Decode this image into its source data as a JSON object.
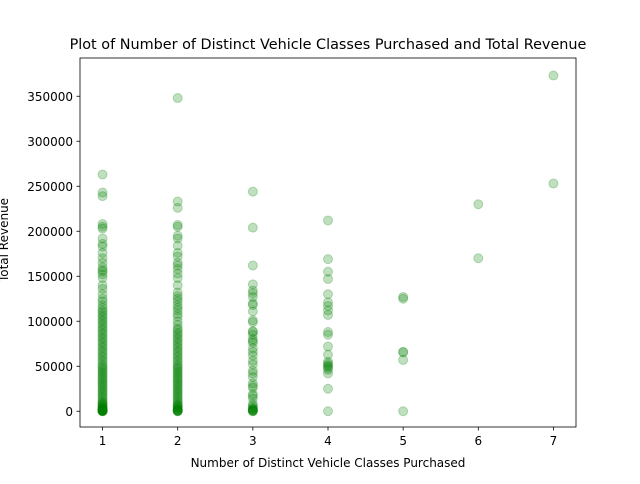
{
  "chart_data": {
    "type": "scatter",
    "title": "Plot of Number of Distinct Vehicle Classes Purchased and Total Revenue",
    "xlabel": "Number of Distinct Vehicle Classes Purchased",
    "ylabel": "Total Revenue",
    "xlim": [
      0.7,
      7.3
    ],
    "ylim": [
      -17500,
      392500
    ],
    "xticks": [
      1,
      2,
      3,
      4,
      5,
      6,
      7
    ],
    "yticks": [
      0,
      50000,
      100000,
      150000,
      200000,
      250000,
      300000,
      350000
    ],
    "ytick_labels": [
      "0",
      "50000",
      "100000",
      "150000",
      "200000",
      "250000",
      "300000",
      "350000"
    ],
    "grid": false,
    "marker_color": "#008000",
    "marker_opacity": 0.25,
    "x": [
      1,
      1,
      1,
      1,
      1,
      1,
      1,
      1,
      1,
      1,
      1,
      1,
      1,
      1,
      1,
      1,
      1,
      1,
      1,
      1,
      1,
      1,
      1,
      1,
      1,
      1,
      1,
      1,
      1,
      1,
      1,
      1,
      1,
      1,
      1,
      1,
      1,
      1,
      1,
      1,
      1,
      1,
      1,
      1,
      1,
      1,
      1,
      1,
      1,
      1,
      1,
      1,
      1,
      1,
      1,
      1,
      1,
      1,
      1,
      1,
      1,
      1,
      1,
      1,
      1,
      1,
      1,
      1,
      1,
      1,
      1,
      1,
      1,
      1,
      1,
      1,
      1,
      1,
      1,
      1,
      1,
      1,
      1,
      1,
      1,
      1,
      1,
      1,
      1,
      1,
      2,
      2,
      2,
      2,
      2,
      2,
      2,
      2,
      2,
      2,
      2,
      2,
      2,
      2,
      2,
      2,
      2,
      2,
      2,
      2,
      2,
      2,
      2,
      2,
      2,
      2,
      2,
      2,
      2,
      2,
      2,
      2,
      2,
      2,
      2,
      2,
      2,
      2,
      2,
      2,
      2,
      2,
      2,
      2,
      2,
      2,
      2,
      2,
      2,
      2,
      2,
      2,
      2,
      2,
      2,
      2,
      2,
      2,
      2,
      2,
      2,
      2,
      2,
      2,
      2,
      2,
      2,
      2,
      2,
      2,
      2,
      2,
      2,
      2,
      2,
      2,
      2,
      2,
      3,
      3,
      3,
      3,
      3,
      3,
      3,
      3,
      3,
      3,
      3,
      3,
      3,
      3,
      3,
      3,
      3,
      3,
      3,
      3,
      3,
      3,
      3,
      3,
      3,
      3,
      3,
      3,
      3,
      3,
      3,
      3,
      3,
      3,
      3,
      3,
      3,
      3,
      3,
      3,
      3,
      3,
      4,
      4,
      4,
      4,
      4,
      4,
      4,
      4,
      4,
      4,
      4,
      4,
      4,
      4,
      4,
      4,
      4,
      4,
      4,
      4,
      4,
      4,
      5,
      5,
      5,
      5,
      5,
      5,
      6,
      6,
      7,
      7
    ],
    "y": [
      263000,
      243000,
      239000,
      208000,
      205000,
      203000,
      192000,
      186000,
      183000,
      176000,
      170000,
      165000,
      160000,
      157000,
      155000,
      152000,
      148000,
      140000,
      136000,
      130000,
      125000,
      122000,
      118000,
      115000,
      112000,
      110000,
      107000,
      105000,
      102000,
      100000,
      97000,
      95000,
      92000,
      90000,
      87000,
      85000,
      82000,
      80000,
      77000,
      75000,
      72000,
      70000,
      67000,
      65000,
      62000,
      60000,
      57000,
      55000,
      52000,
      50000,
      48000,
      46000,
      44000,
      42000,
      40000,
      38000,
      36000,
      34000,
      32000,
      30000,
      28000,
      26000,
      24000,
      22000,
      20000,
      18000,
      16000,
      14000,
      12000,
      10000,
      9000,
      8000,
      7000,
      6000,
      5000,
      4000,
      3500,
      3000,
      2500,
      2000,
      1500,
      1200,
      1000,
      800,
      600,
      400,
      300,
      200,
      100,
      0,
      348000,
      233000,
      226000,
      207000,
      205000,
      195000,
      192000,
      184000,
      176000,
      172000,
      165000,
      162000,
      158000,
      153000,
      148000,
      140000,
      132000,
      128000,
      125000,
      122000,
      118000,
      115000,
      112000,
      108000,
      105000,
      100000,
      96000,
      92000,
      90000,
      87000,
      85000,
      82000,
      80000,
      77000,
      75000,
      72000,
      70000,
      67000,
      65000,
      62000,
      60000,
      57000,
      55000,
      52000,
      50000,
      48000,
      46000,
      44000,
      42000,
      40000,
      38000,
      36000,
      34000,
      32000,
      30000,
      28000,
      26000,
      24000,
      22000,
      20000,
      18000,
      16000,
      14000,
      12000,
      10000,
      8000,
      7000,
      6000,
      5000,
      4000,
      3000,
      2000,
      1500,
      1000,
      600,
      300,
      100,
      0,
      244000,
      204000,
      162000,
      141000,
      134000,
      131000,
      127000,
      120000,
      118000,
      111000,
      101000,
      99000,
      89000,
      88000,
      85000,
      80000,
      78000,
      76000,
      70000,
      66000,
      62000,
      56000,
      52000,
      45000,
      42000,
      38000,
      31000,
      28000,
      26000,
      19000,
      17000,
      14000,
      8000,
      6000,
      4000,
      3000,
      2000,
      1500,
      1000,
      500,
      200,
      0,
      212000,
      169000,
      155000,
      147000,
      130000,
      121000,
      117000,
      112000,
      107000,
      88000,
      85000,
      72000,
      63000,
      55000,
      53000,
      51000,
      50000,
      48000,
      46000,
      42000,
      25000,
      0,
      127000,
      125000,
      66000,
      57000,
      65500,
      0,
      230000,
      170000,
      373000,
      253000
    ]
  }
}
